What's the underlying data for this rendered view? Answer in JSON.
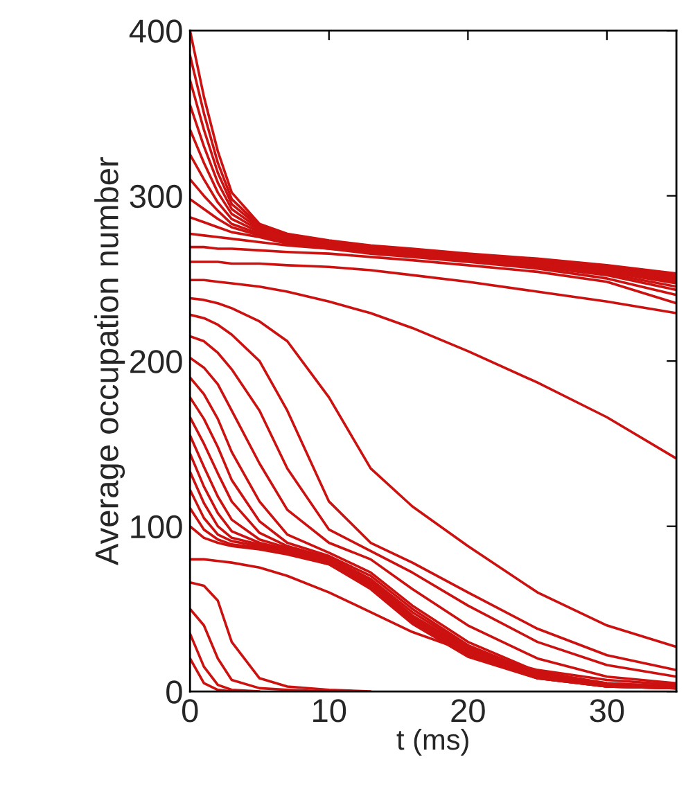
{
  "chart_data": {
    "type": "line",
    "xlabel": "t (ms)",
    "ylabel": "Average occupation number",
    "x": [
      0,
      1,
      2,
      3,
      5,
      7,
      10,
      13,
      16,
      20,
      25,
      30,
      35
    ],
    "xlim": [
      0,
      35
    ],
    "xticks": [
      0,
      10,
      20,
      30
    ],
    "ylim": [
      0,
      400
    ],
    "yticks": [
      0,
      100,
      200,
      300,
      400
    ],
    "grid": false,
    "marker": "none",
    "line_style": "solid",
    "series": [
      {
        "color": "#cc1111",
        "values": [
          400,
          360,
          327,
          302,
          283,
          277,
          273,
          270,
          268,
          265,
          262,
          258,
          253
        ]
      },
      {
        "color": "#cc1111",
        "values": [
          385,
          350,
          320,
          298,
          282,
          276,
          272,
          269,
          267,
          264,
          261,
          257,
          252
        ]
      },
      {
        "color": "#cc1111",
        "values": [
          370,
          340,
          314,
          295,
          281,
          276,
          272,
          269,
          267,
          264,
          261,
          257,
          251
        ]
      },
      {
        "color": "#cc1111",
        "values": [
          355,
          330,
          308,
          292,
          280,
          275,
          271,
          268,
          266,
          263,
          260,
          256,
          250
        ]
      },
      {
        "color": "#cc1111",
        "values": [
          340,
          320,
          302,
          289,
          279,
          275,
          271,
          268,
          266,
          263,
          260,
          255,
          249
        ]
      },
      {
        "color": "#cc1111",
        "values": [
          325,
          310,
          296,
          286,
          278,
          274,
          270,
          268,
          265,
          262,
          259,
          255,
          248
        ]
      },
      {
        "color": "#cc1111",
        "values": [
          310,
          300,
          291,
          283,
          277,
          273,
          270,
          267,
          265,
          262,
          259,
          254,
          247
        ]
      },
      {
        "color": "#cc1111",
        "values": [
          298,
          292,
          286,
          281,
          276,
          272,
          269,
          267,
          264,
          261,
          258,
          253,
          245
        ]
      },
      {
        "color": "#cc1111",
        "values": [
          287,
          284,
          281,
          278,
          275,
          271,
          268,
          266,
          264,
          261,
          257,
          252,
          243
        ]
      },
      {
        "color": "#cc1111",
        "values": [
          277,
          276,
          275,
          274,
          272,
          270,
          268,
          265,
          263,
          260,
          256,
          250,
          240
        ]
      },
      {
        "color": "#cc1111",
        "values": [
          269,
          269,
          268,
          268,
          267,
          266,
          265,
          263,
          261,
          258,
          254,
          248,
          235
        ]
      },
      {
        "color": "#cc1111",
        "values": [
          260,
          260,
          260,
          259,
          259,
          258,
          257,
          255,
          252,
          248,
          242,
          236,
          229
        ]
      },
      {
        "color": "#cc1111",
        "values": [
          249,
          249,
          248,
          247,
          245,
          242,
          236,
          229,
          220,
          206,
          187,
          166,
          141
        ]
      },
      {
        "color": "#cc1111",
        "values": [
          238,
          237,
          235,
          232,
          224,
          212,
          178,
          135,
          112,
          88,
          60,
          40,
          27
        ]
      },
      {
        "color": "#cc1111",
        "values": [
          228,
          226,
          222,
          216,
          200,
          170,
          115,
          90,
          78,
          60,
          38,
          22,
          13
        ]
      },
      {
        "color": "#cc1111",
        "values": [
          215,
          212,
          205,
          195,
          170,
          135,
          98,
          85,
          72,
          52,
          30,
          16,
          9
        ]
      },
      {
        "color": "#cc1111",
        "values": [
          202,
          196,
          186,
          170,
          138,
          110,
          90,
          80,
          62,
          40,
          20,
          9,
          5
        ]
      },
      {
        "color": "#cc1111",
        "values": [
          190,
          180,
          165,
          145,
          115,
          95,
          84,
          72,
          52,
          30,
          12,
          5,
          3
        ]
      },
      {
        "color": "#cc1111",
        "values": [
          178,
          165,
          148,
          128,
          103,
          90,
          82,
          70,
          50,
          28,
          11,
          5,
          3
        ]
      },
      {
        "color": "#cc1111",
        "values": [
          166,
          150,
          132,
          115,
          96,
          88,
          81,
          68,
          48,
          27,
          10,
          4,
          2
        ]
      },
      {
        "color": "#cc1111",
        "values": [
          155,
          136,
          118,
          104,
          92,
          87,
          80,
          67,
          46,
          26,
          10,
          4,
          2
        ]
      },
      {
        "color": "#cc1111",
        "values": [
          144,
          124,
          108,
          97,
          90,
          86,
          79,
          66,
          45,
          25,
          9,
          4,
          2
        ]
      },
      {
        "color": "#cc1111",
        "values": [
          133,
          114,
          100,
          93,
          89,
          85,
          78,
          65,
          44,
          24,
          9,
          3,
          2
        ]
      },
      {
        "color": "#cc1111",
        "values": [
          122,
          105,
          95,
          91,
          88,
          84,
          78,
          64,
          43,
          23,
          8,
          3,
          2
        ]
      },
      {
        "color": "#cc1111",
        "values": [
          111,
          98,
          92,
          89,
          87,
          84,
          77,
          63,
          42,
          22,
          8,
          3,
          2
        ]
      },
      {
        "color": "#cc1111",
        "values": [
          100,
          93,
          90,
          88,
          86,
          83,
          77,
          62,
          41,
          21,
          8,
          3,
          2
        ]
      },
      {
        "color": "#cc1111",
        "values": [
          80,
          80,
          79,
          78,
          75,
          70,
          60,
          48,
          36,
          24,
          13,
          7,
          4
        ]
      },
      {
        "color": "#cc1111",
        "values": [
          66,
          64,
          55,
          30,
          8,
          3,
          1,
          0,
          null,
          null,
          null,
          null,
          null
        ]
      },
      {
        "color": "#cc1111",
        "values": [
          50,
          40,
          20,
          7,
          2,
          1,
          0,
          null,
          null,
          null,
          null,
          null,
          null
        ]
      },
      {
        "color": "#cc1111",
        "values": [
          35,
          15,
          4,
          1,
          0,
          null,
          null,
          null,
          null,
          null,
          null,
          null,
          null
        ]
      },
      {
        "color": "#cc1111",
        "values": [
          20,
          5,
          1,
          0,
          null,
          null,
          null,
          null,
          null,
          null,
          null,
          null,
          null
        ]
      }
    ]
  }
}
